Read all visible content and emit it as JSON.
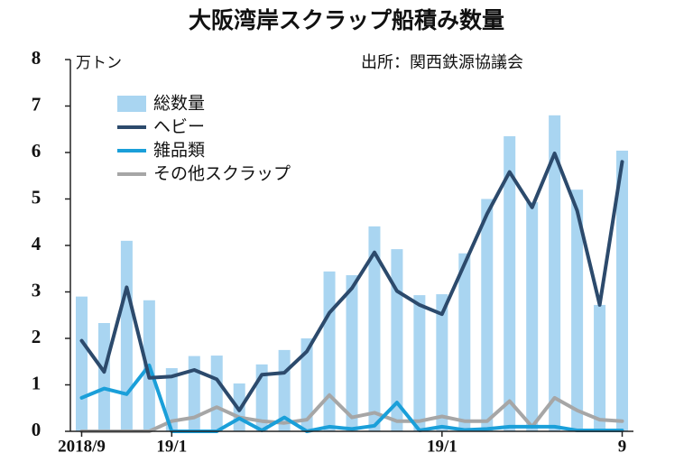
{
  "chart_data": {
    "type": "bar",
    "title": "大阪湾岸スクラップ船積み数量",
    "source": "出所：関西鉄源協議会",
    "y_label": "万トン",
    "categories": [
      "2018/9",
      null,
      null,
      null,
      "19/1",
      null,
      null,
      null,
      null,
      null,
      null,
      null,
      null,
      null,
      null,
      null,
      "19/1",
      null,
      null,
      null,
      null,
      null,
      null,
      null,
      "9"
    ],
    "series": [
      {
        "name": "総数量",
        "type": "bar",
        "color": "#a9d5f1",
        "values": [
          2.9,
          2.33,
          4.1,
          2.82,
          1.36,
          1.62,
          1.63,
          1.03,
          1.44,
          1.75,
          2.0,
          3.44,
          3.36,
          4.41,
          3.92,
          2.93,
          2.95,
          3.83,
          5.0,
          6.35,
          4.93,
          6.8,
          5.2,
          2.72,
          6.04
        ]
      },
      {
        "name": "ヘビー",
        "type": "line",
        "color": "#2c4a6c",
        "values": [
          1.95,
          1.28,
          3.1,
          1.15,
          1.18,
          1.32,
          1.12,
          0.45,
          1.22,
          1.26,
          1.72,
          2.55,
          3.08,
          3.85,
          3.02,
          2.72,
          2.52,
          3.6,
          4.68,
          5.58,
          4.82,
          5.98,
          4.75,
          2.72,
          5.8
        ]
      },
      {
        "name": "雑品類",
        "type": "line",
        "color": "#1a9fd9",
        "values": [
          0.72,
          0.92,
          0.8,
          1.42,
          0,
          0,
          0,
          0.28,
          0.02,
          0.3,
          0,
          0.1,
          0.05,
          0.12,
          0.62,
          0.02,
          0.1,
          0.03,
          0.05,
          0.1,
          0.1,
          0.1,
          0.02,
          0.02,
          0.02
        ]
      },
      {
        "name": "その他スクラップ",
        "type": "line",
        "color": "#a6a6a6",
        "values": [
          0,
          0,
          0,
          0,
          0.22,
          0.3,
          0.52,
          0.3,
          0.22,
          0.18,
          0.25,
          0.78,
          0.3,
          0.4,
          0.22,
          0.22,
          0.32,
          0.22,
          0.22,
          0.65,
          0.1,
          0.72,
          0.45,
          0.25,
          0.22
        ]
      }
    ],
    "ylim": [
      0,
      8
    ],
    "yticks": [
      0,
      1,
      2,
      3,
      4,
      5,
      6,
      7,
      8
    ],
    "legend": "upper left"
  }
}
